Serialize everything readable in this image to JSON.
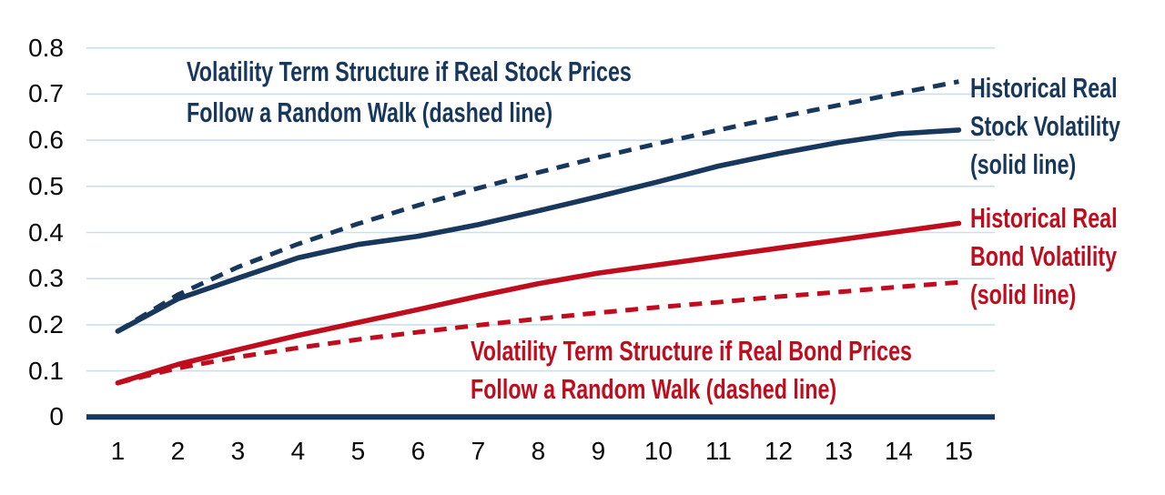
{
  "chart_data": {
    "type": "line",
    "title": "",
    "xlabel": "",
    "ylabel": "",
    "x": [
      1,
      2,
      3,
      4,
      5,
      6,
      7,
      8,
      9,
      10,
      11,
      12,
      13,
      14,
      15
    ],
    "x_tick_labels": [
      "1",
      "2",
      "3",
      "4",
      "5",
      "6",
      "7",
      "8",
      "9",
      "10",
      "11",
      "12",
      "13",
      "14",
      "15"
    ],
    "y_ticks": [
      {
        "v": 0.0,
        "label": "0"
      },
      {
        "v": 0.1,
        "label": "0.1"
      },
      {
        "v": 0.2,
        "label": "0.2"
      },
      {
        "v": 0.3,
        "label": "0.3"
      },
      {
        "v": 0.4,
        "label": "0.4"
      },
      {
        "v": 0.5,
        "label": "0.5"
      },
      {
        "v": 0.6,
        "label": "0.6"
      },
      {
        "v": 0.7,
        "label": "0.7"
      },
      {
        "v": 0.8,
        "label": "0.8"
      }
    ],
    "ylim": [
      0,
      0.8
    ],
    "grid": "horizontal-only",
    "legend_position": "annotations-on-plot",
    "series": [
      {
        "name": "Historical Real Stock Volatility",
        "style": "solid",
        "color": "#17375C",
        "values": [
          0.186,
          0.256,
          0.301,
          0.345,
          0.374,
          0.392,
          0.417,
          0.447,
          0.478,
          0.51,
          0.544,
          0.571,
          0.595,
          0.614,
          0.622
        ]
      },
      {
        "name": "Volatility Term Structure if Real Stock Prices Follow a Random Walk",
        "style": "dashed",
        "color": "#17375C",
        "values": [
          0.186,
          0.265,
          0.325,
          0.375,
          0.419,
          0.459,
          0.496,
          0.53,
          0.563,
          0.593,
          0.622,
          0.65,
          0.676,
          0.702,
          0.727
        ]
      },
      {
        "name": "Historical Real Bond Volatility",
        "style": "solid",
        "color": "#C00D1D",
        "values": [
          0.074,
          0.114,
          0.146,
          0.177,
          0.205,
          0.233,
          0.262,
          0.289,
          0.312,
          0.33,
          0.348,
          0.366,
          0.384,
          0.402,
          0.42
        ]
      },
      {
        "name": "Volatility Term Structure if Real Bond Prices Follow a Random Walk",
        "style": "dashed",
        "color": "#C00D1D",
        "values": [
          0.074,
          0.106,
          0.13,
          0.15,
          0.168,
          0.184,
          0.199,
          0.213,
          0.226,
          0.238,
          0.249,
          0.261,
          0.271,
          0.282,
          0.292
        ]
      }
    ]
  },
  "colors": {
    "stock_navy": "#17375C",
    "bond_red": "#C00D1D",
    "gridline_blue": "#C9DFEC",
    "axis_navy": "#17375C",
    "tick_text": "#0A0A0A"
  },
  "annotations": {
    "stock_random_walk": {
      "line1": "Volatility Term Structure if Real Stock Prices",
      "line2": "Follow a Random Walk (dashed line)"
    },
    "bond_random_walk": {
      "line1": "Volatility Term Structure if Real Bond Prices",
      "line2": "Follow a Random Walk (dashed line)"
    },
    "stock_historical": {
      "line1": "Historical Real",
      "line2": "Stock Volatility",
      "line3": "(solid line)"
    },
    "bond_historical": {
      "line1": "Historical Real",
      "line2": "Bond Volatility",
      "line3": "(solid line)"
    }
  }
}
